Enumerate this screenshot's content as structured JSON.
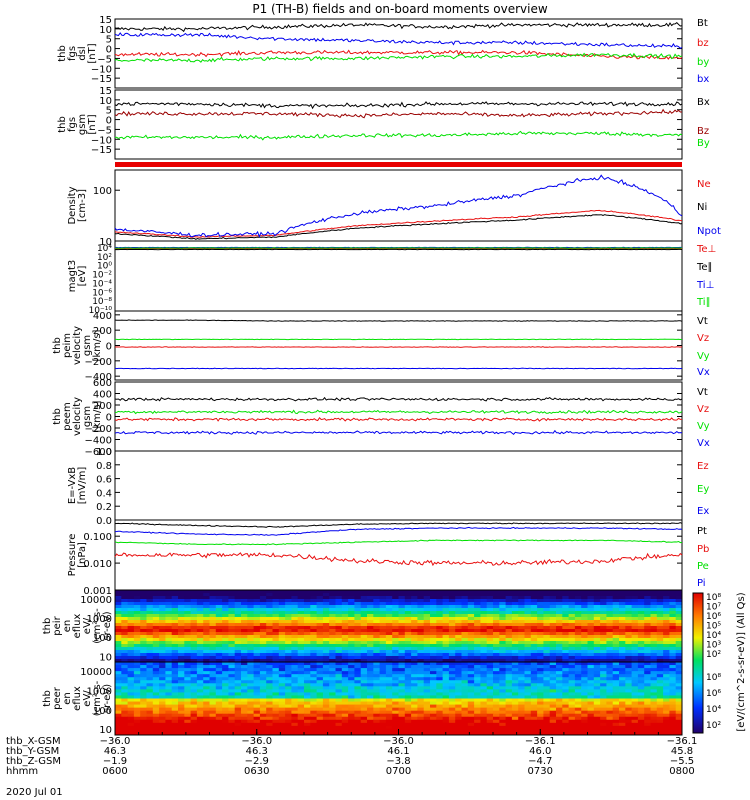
{
  "title": "P1 (TH-B) fields and on-board moments overview",
  "date_label": "2020 Jul 01",
  "colors": {
    "black": "#000000",
    "red": "#e81010",
    "darkred": "#9a0000",
    "green": "#00e000",
    "blue": "#0000ee"
  },
  "chart_data": [
    {
      "id": "fgs_dsl",
      "type": "line",
      "ylabel": [
        "thb",
        "fgs",
        "dsl",
        "[nT]"
      ],
      "ylim": [
        -20,
        15
      ],
      "yscale": "linear",
      "yticks": [
        15,
        10,
        5,
        0,
        -5,
        -10,
        -15
      ],
      "series": [
        {
          "name": "Bt",
          "color": "black",
          "levels": [
            10,
            10,
            11,
            12,
            11,
            12,
            12,
            12
          ]
        },
        {
          "name": "bz",
          "color": "red",
          "levels": [
            -3,
            -3,
            -2,
            -2,
            -2,
            -2,
            -4,
            -5
          ]
        },
        {
          "name": "by",
          "color": "green",
          "levels": [
            -6,
            -6,
            -5,
            -5,
            -4,
            -4,
            -3,
            -4
          ]
        },
        {
          "name": "bx",
          "color": "blue",
          "levels": [
            7,
            7,
            5,
            4,
            3,
            3,
            2,
            1
          ]
        }
      ]
    },
    {
      "id": "fgs_gsm",
      "type": "line",
      "ylabel": [
        "thb",
        "fgs",
        "gsm",
        "[nT]"
      ],
      "ylim": [
        -20,
        15
      ],
      "yscale": "linear",
      "yticks": [
        15,
        10,
        5,
        0,
        -5,
        -10,
        -15
      ],
      "series": [
        {
          "name": "Bx",
          "color": "black",
          "levels": [
            8,
            8,
            7,
            7,
            8,
            8,
            8,
            8
          ]
        },
        {
          "name": "Bz",
          "color": "darkred",
          "levels": [
            3,
            3,
            3,
            2,
            3,
            2,
            3,
            4
          ]
        },
        {
          "name": "By",
          "color": "green",
          "levels": [
            -9,
            -9,
            -9,
            -8,
            -8,
            -7,
            -7,
            -8
          ]
        }
      ]
    },
    {
      "id": "density",
      "type": "line",
      "ylabel": [
        "Density",
        "[cm-3]"
      ],
      "ylim": [
        10,
        250
      ],
      "yscale": "log",
      "yticks": [
        100,
        10
      ],
      "series": [
        {
          "name": "Ne",
          "color": "red",
          "levels": [
            15,
            12,
            13,
            20,
            25,
            30,
            40,
            25
          ]
        },
        {
          "name": "Ni",
          "color": "black",
          "levels": [
            14,
            11,
            12,
            18,
            22,
            26,
            33,
            22
          ]
        },
        {
          "name": "Npot",
          "color": "blue",
          "levels": [
            17,
            13,
            14,
            35,
            50,
            80,
            180,
            30
          ]
        }
      ]
    },
    {
      "id": "magt3",
      "type": "line",
      "ylabel": [
        "magt3",
        "[eV]"
      ],
      "ylim": [
        1e-10,
        10000.0
      ],
      "yscale": "log",
      "ytick_labels": [
        "10⁴",
        "10²",
        "10⁰",
        "10⁻²",
        "10⁻⁴",
        "10⁻⁶",
        "10⁻⁸",
        "10⁻¹⁰"
      ],
      "series": [
        {
          "name": "Te⊥",
          "color": "red",
          "levels": [
            300,
            300,
            300,
            300,
            300,
            300,
            300,
            300
          ]
        },
        {
          "name": "Te∥",
          "color": "black",
          "levels": [
            200,
            200,
            200,
            200,
            200,
            200,
            200,
            200
          ]
        },
        {
          "name": "Ti⊥",
          "color": "blue",
          "levels": [
            500,
            500,
            500,
            500,
            500,
            500,
            500,
            500
          ]
        },
        {
          "name": "Ti∥",
          "color": "green",
          "levels": [
            400,
            400,
            400,
            400,
            400,
            400,
            400,
            400
          ]
        }
      ]
    },
    {
      "id": "peim",
      "type": "line",
      "ylabel": [
        "thb",
        "peim",
        "velocity",
        "gsm",
        "[km/s]"
      ],
      "ylim": [
        -450,
        450
      ],
      "yscale": "linear",
      "yticks": [
        400,
        200,
        0,
        -200,
        -400
      ],
      "series": [
        {
          "name": "Vt",
          "color": "black",
          "levels": [
            330,
            330,
            320,
            320,
            320,
            320,
            320,
            320
          ]
        },
        {
          "name": "Vz",
          "color": "red",
          "levels": [
            -20,
            -20,
            -20,
            -20,
            -20,
            -20,
            -20,
            -20
          ]
        },
        {
          "name": "Vy",
          "color": "green",
          "levels": [
            80,
            80,
            80,
            80,
            80,
            80,
            80,
            80
          ]
        },
        {
          "name": "Vx",
          "color": "blue",
          "levels": [
            -300,
            -300,
            -300,
            -300,
            -300,
            -300,
            -300,
            -300
          ]
        }
      ]
    },
    {
      "id": "peem",
      "type": "line",
      "ylabel": [
        "thb",
        "peem",
        "velocity",
        "gsm",
        "[km/s]"
      ],
      "ylim": [
        -600,
        600
      ],
      "yscale": "linear",
      "yticks": [
        600,
        400,
        200,
        0,
        -200,
        -400,
        -600
      ],
      "series": [
        {
          "name": "Vt",
          "color": "black",
          "levels": [
            300,
            300,
            300,
            300,
            300,
            300,
            300,
            300
          ]
        },
        {
          "name": "Vz",
          "color": "red",
          "levels": [
            -50,
            -50,
            -50,
            -50,
            -50,
            -50,
            -50,
            -50
          ]
        },
        {
          "name": "Vy",
          "color": "green",
          "levels": [
            80,
            80,
            80,
            80,
            80,
            80,
            80,
            80
          ]
        },
        {
          "name": "Vx",
          "color": "blue",
          "levels": [
            -280,
            -280,
            -280,
            -280,
            -280,
            -280,
            -280,
            -280
          ]
        }
      ]
    },
    {
      "id": "efield",
      "type": "line",
      "ylabel": [
        "E=-VxB",
        "[mV/m]"
      ],
      "ylim": [
        0,
        1
      ],
      "yscale": "linear",
      "yticks": [
        1.0,
        0.8,
        0.6,
        0.4,
        0.2,
        0.0
      ],
      "tick_format": "fixed1",
      "series": [
        {
          "name": "Ez",
          "color": "red",
          "levels": []
        },
        {
          "name": "Ey",
          "color": "green",
          "levels": []
        },
        {
          "name": "Ex",
          "color": "blue",
          "levels": []
        }
      ]
    },
    {
      "id": "pressure",
      "type": "line",
      "ylabel": [
        "Pressure",
        "[nPa]"
      ],
      "ylim": [
        0.001,
        0.4
      ],
      "yscale": "log",
      "yticks": [
        0.1,
        0.01,
        0.001
      ],
      "tick_labels": [
        "0.100",
        "0.010",
        "0.001"
      ],
      "series": [
        {
          "name": "Pt",
          "color": "black",
          "levels": [
            0.3,
            0.25,
            0.22,
            0.28,
            0.3,
            0.3,
            0.3,
            0.3
          ]
        },
        {
          "name": "Pb",
          "color": "red",
          "levels": [
            0.02,
            0.02,
            0.02,
            0.012,
            0.01,
            0.01,
            0.012,
            0.02
          ]
        },
        {
          "name": "Pe",
          "color": "green",
          "levels": [
            0.06,
            0.05,
            0.05,
            0.06,
            0.07,
            0.07,
            0.07,
            0.06
          ]
        },
        {
          "name": "Pi",
          "color": "blue",
          "levels": [
            0.15,
            0.12,
            0.11,
            0.18,
            0.2,
            0.2,
            0.2,
            0.18
          ]
        }
      ]
    },
    {
      "id": "peir_spec",
      "type": "heatmap",
      "ylabel": [
        "thb",
        "peir",
        "en",
        "eflux",
        "eV/",
        "(cm²-s-",
        "sr-eV)"
      ],
      "ylim": [
        5,
        30000
      ],
      "yscale": "log",
      "yticks": [
        10000,
        1000,
        100,
        10
      ],
      "colorbar": {
        "tick_labels": [
          "10⁸",
          "10⁷",
          "10⁶",
          "10⁵",
          "10⁴",
          "10³",
          "10²"
        ],
        "label": "[eV/(cm^2-s-sr-eV)] (All Qs)"
      }
    },
    {
      "id": "peer_spec",
      "type": "heatmap",
      "ylabel": [
        "thb",
        "peer",
        "en",
        "eflux",
        "eV/",
        "(cm²-s-",
        "sr-eV)"
      ],
      "ylim": [
        5,
        30000
      ],
      "yscale": "log",
      "yticks": [
        10000,
        1000,
        100,
        10
      ],
      "colorbar": {
        "tick_labels": [
          "10⁸",
          "10⁶",
          "10⁴",
          "10²"
        ],
        "label": "[eV/(cm^2-s-sr-eV)] (All Qs)"
      }
    }
  ],
  "x_axis": {
    "rows": [
      {
        "name": "thb_X-GSM",
        "values": [
          "-36.0",
          "-36.0",
          "-36.0",
          "-36.1",
          "-36.1"
        ]
      },
      {
        "name": "thb_Y-GSM",
        "values": [
          "46.3",
          "46.3",
          "46.1",
          "46.0",
          "45.8"
        ]
      },
      {
        "name": "thb_Z-GSM",
        "values": [
          "-1.9",
          "-2.9",
          "-3.8",
          "-4.7",
          "-5.5"
        ]
      },
      {
        "name": "hhmm",
        "values": [
          "0600",
          "0630",
          "0700",
          "0730",
          "0800"
        ]
      }
    ],
    "time_range": [
      0,
      120
    ]
  }
}
